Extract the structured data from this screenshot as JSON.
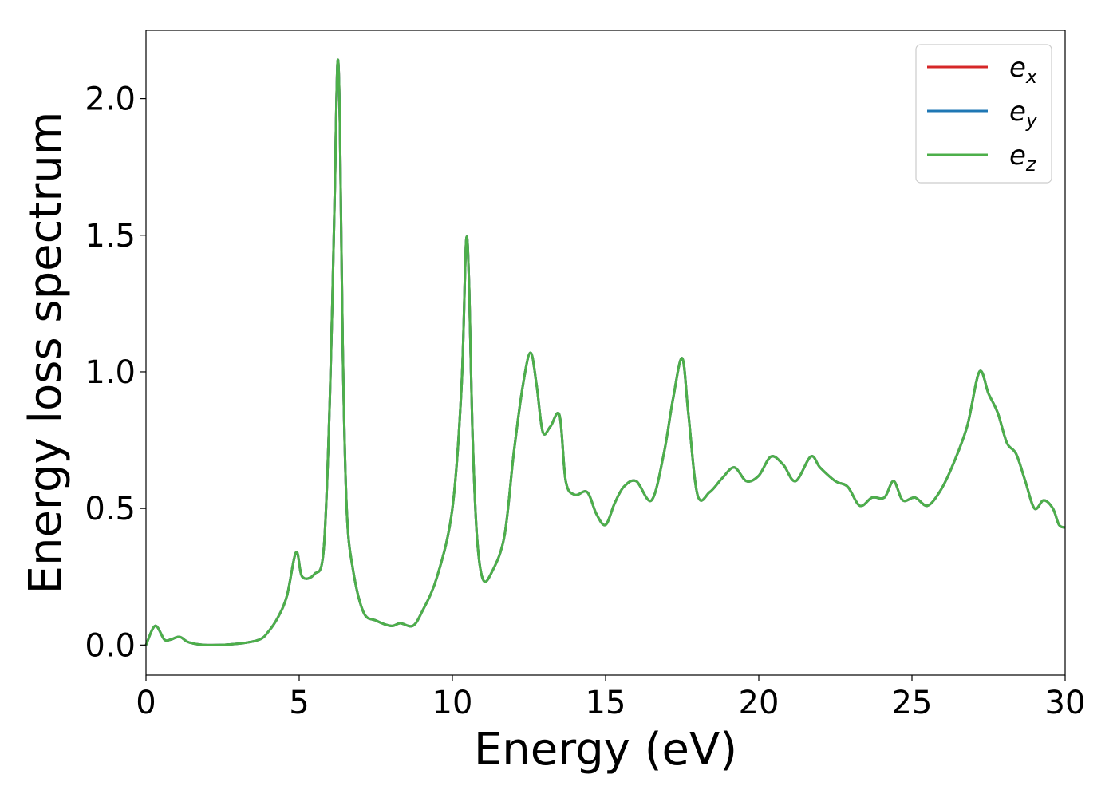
{
  "chart_data": {
    "type": "line",
    "xlabel": "Energy (eV)",
    "ylabel": "Energy loss spectrum",
    "xlim": [
      0,
      30
    ],
    "ylim": [
      -0.11,
      2.25
    ],
    "xticks": [
      0,
      5,
      10,
      15,
      20,
      25,
      30
    ],
    "xtick_labels": [
      "0",
      "5",
      "10",
      "15",
      "20",
      "25",
      "30"
    ],
    "yticks": [
      0.0,
      0.5,
      1.0,
      1.5,
      2.0
    ],
    "ytick_labels": [
      "0.0",
      "0.5",
      "1.0",
      "1.5",
      "2.0"
    ],
    "grid": false,
    "legend_position": "top-right",
    "series": [
      {
        "name": "e_x",
        "legend_base": "e",
        "legend_sub": "x",
        "color": "#d62728",
        "x": [
          0,
          0.3,
          0.6,
          0.8,
          1.1,
          1.4,
          2,
          3,
          3.7,
          4,
          4.3,
          4.6,
          4.9,
          5.1,
          5.5,
          5.8,
          6.0,
          6.15,
          6.25,
          6.33,
          6.42,
          6.55,
          6.75,
          7.1,
          7.5,
          8.0,
          8.3,
          8.7,
          9.0,
          9.5,
          10.0,
          10.3,
          10.45,
          10.55,
          10.65,
          10.8,
          11.0,
          11.3,
          11.7,
          12.0,
          12.3,
          12.55,
          12.75,
          12.95,
          13.2,
          13.5,
          13.7,
          14.0,
          14.4,
          14.7,
          15.0,
          15.3,
          15.6,
          16.0,
          16.5,
          16.9,
          17.2,
          17.5,
          17.7,
          18.0,
          18.4,
          18.8,
          19.2,
          19.6,
          20.0,
          20.4,
          20.8,
          21.2,
          21.7,
          22.0,
          22.5,
          22.9,
          23.3,
          23.7,
          24.1,
          24.4,
          24.7,
          25.1,
          25.5,
          25.9,
          26.3,
          26.8,
          27.2,
          27.5,
          27.8,
          28.1,
          28.4,
          28.7,
          29.0,
          29.3,
          29.6,
          29.8,
          30.0
        ],
        "y": [
          0.0,
          0.07,
          0.02,
          0.02,
          0.03,
          0.01,
          0.0,
          0.005,
          0.02,
          0.05,
          0.1,
          0.18,
          0.34,
          0.25,
          0.26,
          0.35,
          0.9,
          1.6,
          2.13,
          1.9,
          1.1,
          0.5,
          0.28,
          0.12,
          0.09,
          0.07,
          0.08,
          0.07,
          0.12,
          0.25,
          0.5,
          0.95,
          1.48,
          1.3,
          0.8,
          0.4,
          0.24,
          0.27,
          0.4,
          0.7,
          0.95,
          1.07,
          0.95,
          0.78,
          0.8,
          0.84,
          0.6,
          0.55,
          0.56,
          0.48,
          0.44,
          0.52,
          0.58,
          0.6,
          0.53,
          0.7,
          0.9,
          1.05,
          0.85,
          0.55,
          0.56,
          0.61,
          0.65,
          0.6,
          0.62,
          0.69,
          0.66,
          0.6,
          0.69,
          0.65,
          0.6,
          0.58,
          0.51,
          0.54,
          0.54,
          0.6,
          0.53,
          0.54,
          0.51,
          0.56,
          0.65,
          0.8,
          1.0,
          0.92,
          0.85,
          0.74,
          0.7,
          0.6,
          0.5,
          0.53,
          0.5,
          0.44,
          0.43
        ]
      },
      {
        "name": "e_y",
        "legend_base": "e",
        "legend_sub": "y",
        "color": "#1f77b4",
        "x": [
          0,
          0.3,
          0.6,
          0.8,
          1.1,
          1.4,
          2,
          3,
          3.7,
          4,
          4.3,
          4.6,
          4.9,
          5.1,
          5.5,
          5.8,
          6.0,
          6.15,
          6.25,
          6.33,
          6.42,
          6.55,
          6.75,
          7.1,
          7.5,
          8.0,
          8.3,
          8.7,
          9.0,
          9.5,
          10.0,
          10.3,
          10.45,
          10.55,
          10.65,
          10.8,
          11.0,
          11.3,
          11.7,
          12.0,
          12.3,
          12.55,
          12.75,
          12.95,
          13.2,
          13.5,
          13.7,
          14.0,
          14.4,
          14.7,
          15.0,
          15.3,
          15.6,
          16.0,
          16.5,
          16.9,
          17.2,
          17.5,
          17.7,
          18.0,
          18.4,
          18.8,
          19.2,
          19.6,
          20.0,
          20.4,
          20.8,
          21.2,
          21.7,
          22.0,
          22.5,
          22.9,
          23.3,
          23.7,
          24.1,
          24.4,
          24.7,
          25.1,
          25.5,
          25.9,
          26.3,
          26.8,
          27.2,
          27.5,
          27.8,
          28.1,
          28.4,
          28.7,
          29.0,
          29.3,
          29.6,
          29.8,
          30.0
        ],
        "y": [
          0.0,
          0.07,
          0.02,
          0.02,
          0.03,
          0.01,
          0.0,
          0.005,
          0.02,
          0.05,
          0.1,
          0.18,
          0.34,
          0.25,
          0.26,
          0.35,
          0.9,
          1.6,
          2.13,
          1.9,
          1.1,
          0.5,
          0.28,
          0.12,
          0.09,
          0.07,
          0.08,
          0.07,
          0.12,
          0.25,
          0.5,
          0.95,
          1.48,
          1.3,
          0.8,
          0.4,
          0.24,
          0.27,
          0.4,
          0.7,
          0.95,
          1.07,
          0.95,
          0.78,
          0.8,
          0.84,
          0.6,
          0.55,
          0.56,
          0.48,
          0.44,
          0.52,
          0.58,
          0.6,
          0.53,
          0.7,
          0.9,
          1.05,
          0.85,
          0.55,
          0.56,
          0.61,
          0.65,
          0.6,
          0.62,
          0.69,
          0.66,
          0.6,
          0.69,
          0.65,
          0.6,
          0.58,
          0.51,
          0.54,
          0.54,
          0.6,
          0.53,
          0.54,
          0.51,
          0.56,
          0.65,
          0.8,
          1.0,
          0.92,
          0.85,
          0.74,
          0.7,
          0.6,
          0.5,
          0.53,
          0.5,
          0.44,
          0.43
        ]
      },
      {
        "name": "e_z",
        "legend_base": "e",
        "legend_sub": "z",
        "color": "#4daf4a",
        "x": [
          0,
          0.3,
          0.6,
          0.8,
          1.1,
          1.4,
          2,
          3,
          3.7,
          4,
          4.3,
          4.6,
          4.9,
          5.1,
          5.5,
          5.8,
          6.0,
          6.15,
          6.25,
          6.33,
          6.42,
          6.55,
          6.75,
          7.1,
          7.5,
          8.0,
          8.3,
          8.7,
          9.0,
          9.5,
          10.0,
          10.3,
          10.45,
          10.55,
          10.65,
          10.8,
          11.0,
          11.3,
          11.7,
          12.0,
          12.3,
          12.55,
          12.75,
          12.95,
          13.2,
          13.5,
          13.7,
          14.0,
          14.4,
          14.7,
          15.0,
          15.3,
          15.6,
          16.0,
          16.5,
          16.9,
          17.2,
          17.5,
          17.7,
          18.0,
          18.4,
          18.8,
          19.2,
          19.6,
          20.0,
          20.4,
          20.8,
          21.2,
          21.7,
          22.0,
          22.5,
          22.9,
          23.3,
          23.7,
          24.1,
          24.4,
          24.7,
          25.1,
          25.5,
          25.9,
          26.3,
          26.8,
          27.2,
          27.5,
          27.8,
          28.1,
          28.4,
          28.7,
          29.0,
          29.3,
          29.6,
          29.8,
          30.0
        ],
        "y": [
          0.0,
          0.07,
          0.02,
          0.02,
          0.03,
          0.01,
          0.0,
          0.005,
          0.02,
          0.05,
          0.1,
          0.18,
          0.34,
          0.25,
          0.26,
          0.35,
          0.9,
          1.6,
          2.13,
          1.9,
          1.1,
          0.5,
          0.28,
          0.12,
          0.09,
          0.07,
          0.08,
          0.07,
          0.12,
          0.25,
          0.5,
          0.95,
          1.48,
          1.3,
          0.8,
          0.4,
          0.24,
          0.27,
          0.4,
          0.7,
          0.95,
          1.07,
          0.95,
          0.78,
          0.8,
          0.84,
          0.6,
          0.55,
          0.56,
          0.48,
          0.44,
          0.52,
          0.58,
          0.6,
          0.53,
          0.7,
          0.9,
          1.05,
          0.85,
          0.55,
          0.56,
          0.61,
          0.65,
          0.6,
          0.62,
          0.69,
          0.66,
          0.6,
          0.69,
          0.65,
          0.6,
          0.58,
          0.51,
          0.54,
          0.54,
          0.6,
          0.53,
          0.54,
          0.51,
          0.56,
          0.65,
          0.8,
          1.0,
          0.92,
          0.85,
          0.74,
          0.7,
          0.6,
          0.5,
          0.53,
          0.5,
          0.44,
          0.43
        ]
      }
    ]
  }
}
